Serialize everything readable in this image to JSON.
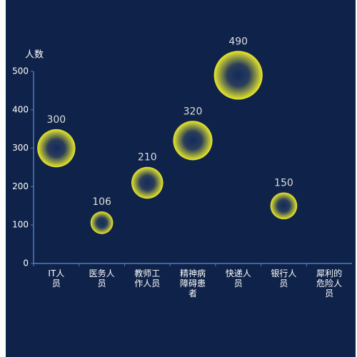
{
  "chart_data": {
    "type": "bubble",
    "y_axis_label": "人数",
    "categories": [
      "IT人员",
      "医务人员",
      "教师工作人员",
      "精神病障碍患者",
      "快递人员",
      "银行人员",
      "犀利的危险人员"
    ],
    "values": [
      300,
      106,
      210,
      320,
      490,
      150,
      null
    ],
    "ylim": [
      0,
      500
    ],
    "yticks": [
      0,
      100,
      200,
      300,
      400,
      500
    ],
    "color": "#e8e82a",
    "background": "#0f2249",
    "axis_color": "#4a7fc1"
  }
}
